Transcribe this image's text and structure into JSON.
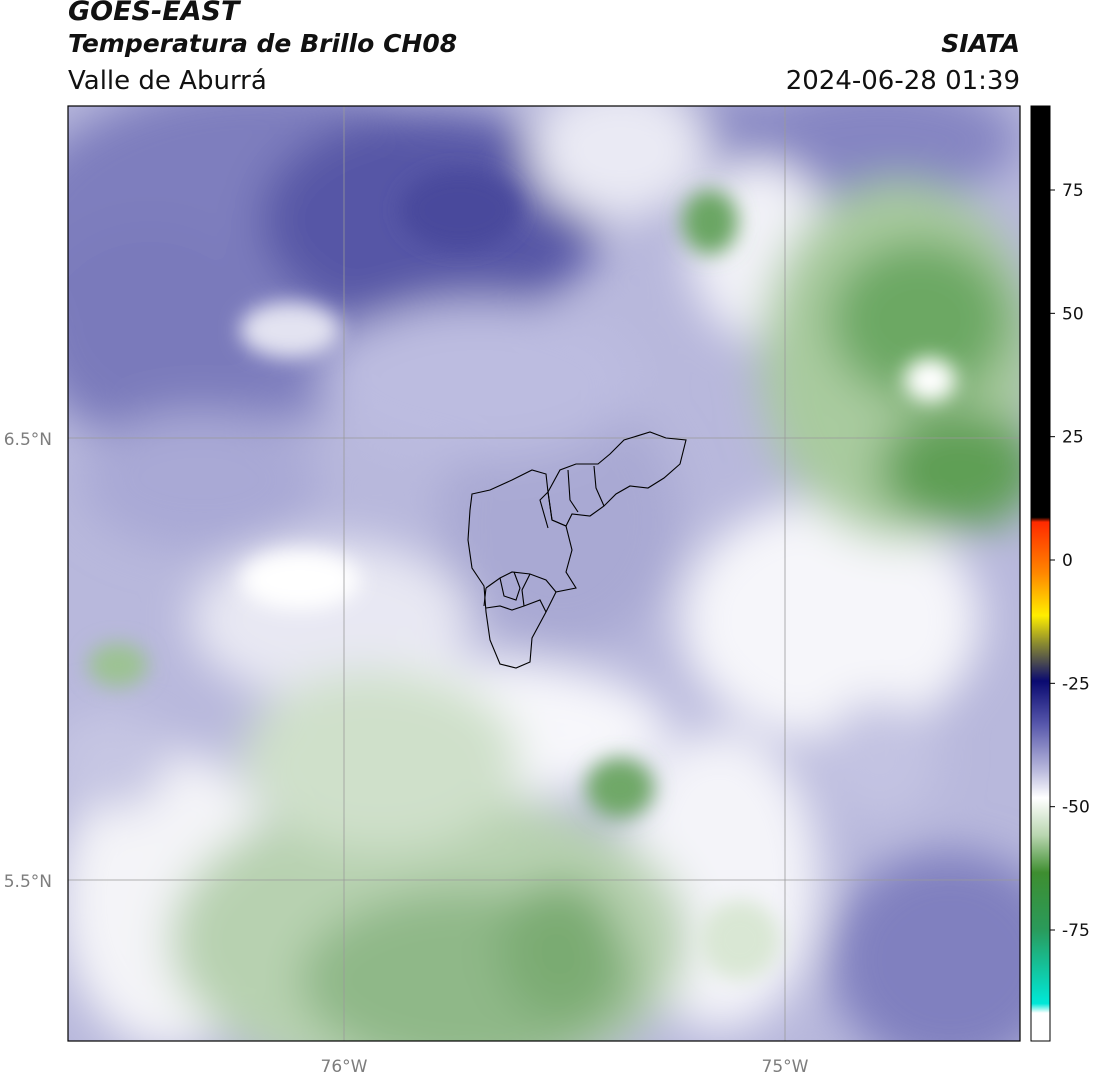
{
  "header": {
    "satellite": "GOES-EAST",
    "product": "Temperatura de Brillo CH08",
    "region": "Valle de Aburrá",
    "organization": "SIATA",
    "timestamp": "2024-06-28 01:39"
  },
  "map": {
    "lat_labels": [
      {
        "label": "6.5°N",
        "value": 6.5
      },
      {
        "label": "5.5°N",
        "value": 5.5
      }
    ],
    "lon_labels": [
      {
        "label": "76°W",
        "value": -76
      },
      {
        "label": "75°W",
        "value": -75
      }
    ],
    "colors": {
      "cold_purple": "#4c4c9e",
      "mid_purple": "#8a8ac4",
      "light_purple": "#c9c9e4",
      "white": "#f6f6fa",
      "light_green": "#c9dcc3",
      "mid_green": "#8fb98a",
      "dark_green": "#3f8f3a"
    }
  },
  "colorbar": {
    "ticks": [
      {
        "label": "75",
        "value": 75
      },
      {
        "label": "50",
        "value": 50
      },
      {
        "label": "25",
        "value": 25
      },
      {
        "label": "0",
        "value": 0
      },
      {
        "label": "-25",
        "value": -25
      },
      {
        "label": "-50",
        "value": -50
      },
      {
        "label": "-75",
        "value": -75
      }
    ]
  }
}
